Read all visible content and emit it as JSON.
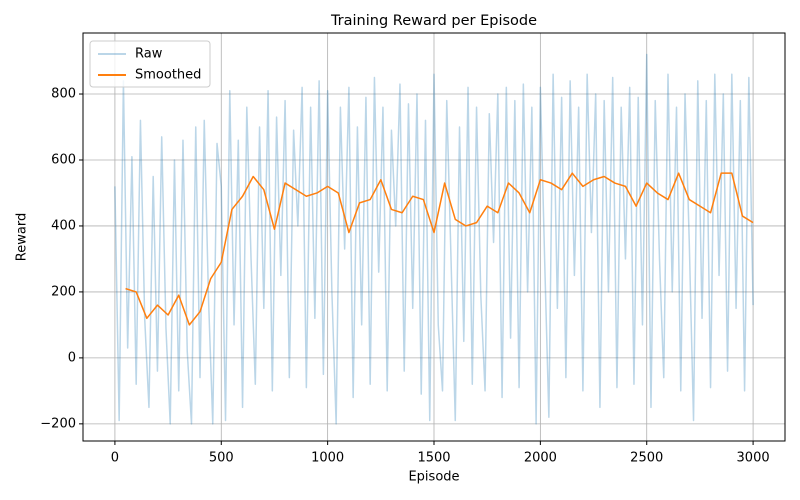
{
  "chart_data": {
    "type": "line",
    "title": "Training Reward per Episode",
    "x_label": "Episode",
    "y_label": "Reward",
    "xlim": [
      -150,
      3150
    ],
    "ylim": [
      -252,
      985
    ],
    "xticks": [
      0,
      500,
      1000,
      1500,
      2000,
      2500,
      3000
    ],
    "yticks": [
      {
        "value": -200,
        "label": "−200"
      },
      0,
      200,
      400,
      600,
      800
    ],
    "grid": true,
    "legend": "upper left",
    "series": [
      {
        "name": "Raw",
        "color": "#1f77b4",
        "opacity": 0.3,
        "x": [
          0,
          20,
          40,
          60,
          80,
          100,
          120,
          140,
          160,
          180,
          200,
          220,
          240,
          260,
          280,
          300,
          320,
          340,
          360,
          380,
          400,
          420,
          440,
          460,
          480,
          500,
          520,
          540,
          560,
          580,
          600,
          620,
          640,
          660,
          680,
          700,
          720,
          740,
          760,
          780,
          800,
          820,
          840,
          860,
          880,
          900,
          920,
          940,
          960,
          980,
          1000,
          1020,
          1040,
          1060,
          1080,
          1100,
          1120,
          1140,
          1160,
          1180,
          1200,
          1220,
          1240,
          1260,
          1280,
          1300,
          1320,
          1340,
          1360,
          1380,
          1400,
          1420,
          1440,
          1460,
          1480,
          1500,
          1520,
          1540,
          1560,
          1580,
          1600,
          1620,
          1640,
          1660,
          1680,
          1700,
          1720,
          1740,
          1760,
          1780,
          1800,
          1820,
          1840,
          1860,
          1880,
          1900,
          1920,
          1940,
          1960,
          1980,
          2000,
          2020,
          2040,
          2060,
          2080,
          2100,
          2120,
          2140,
          2160,
          2180,
          2200,
          2220,
          2240,
          2260,
          2280,
          2300,
          2320,
          2340,
          2360,
          2380,
          2400,
          2420,
          2440,
          2460,
          2480,
          2500,
          2520,
          2540,
          2560,
          2580,
          2600,
          2620,
          2640,
          2660,
          2680,
          2700,
          2720,
          2740,
          2760,
          2780,
          2800,
          2820,
          2840,
          2860,
          2880,
          2900,
          2920,
          2940,
          2960,
          2980,
          3000
        ],
        "values": [
          520,
          -190,
          840,
          30,
          610,
          -80,
          720,
          120,
          -150,
          550,
          -40,
          670,
          90,
          -200,
          600,
          -100,
          660,
          20,
          -200,
          700,
          -60,
          720,
          180,
          -200,
          650,
          520,
          -190,
          810,
          100,
          660,
          -150,
          760,
          300,
          -80,
          700,
          150,
          810,
          -100,
          730,
          250,
          780,
          -60,
          690,
          400,
          820,
          -90,
          760,
          120,
          840,
          -50,
          810,
          200,
          -200,
          760,
          330,
          820,
          -120,
          700,
          100,
          790,
          -80,
          850,
          260,
          760,
          -100,
          690,
          400,
          830,
          -40,
          770,
          150,
          800,
          -110,
          720,
          -190,
          860,
          100,
          -100,
          780,
          300,
          -190,
          700,
          50,
          820,
          -80,
          760,
          190,
          -100,
          740,
          350,
          800,
          -120,
          820,
          60,
          780,
          -90,
          830,
          200,
          760,
          -200,
          820,
          300,
          -180,
          860,
          150,
          790,
          -60,
          840,
          250,
          760,
          -100,
          860,
          380,
          800,
          -150,
          780,
          200,
          850,
          -90,
          760,
          300,
          820,
          -80,
          790,
          100,
          920,
          -150,
          780,
          300,
          -60,
          860,
          200,
          760,
          -100,
          800,
          350,
          -190,
          840,
          120,
          780,
          -90,
          860,
          250,
          800,
          -40,
          860,
          150,
          780,
          -100,
          850,
          160
        ]
      },
      {
        "name": "Smoothed",
        "color": "#ff7f0e",
        "opacity": 1,
        "x": [
          50,
          100,
          150,
          200,
          250,
          300,
          350,
          400,
          450,
          500,
          550,
          600,
          650,
          700,
          750,
          800,
          850,
          900,
          950,
          1000,
          1050,
          1100,
          1150,
          1200,
          1250,
          1300,
          1350,
          1400,
          1450,
          1500,
          1550,
          1600,
          1650,
          1700,
          1750,
          1800,
          1850,
          1900,
          1950,
          2000,
          2050,
          2100,
          2150,
          2200,
          2250,
          2300,
          2350,
          2400,
          2450,
          2500,
          2550,
          2600,
          2650,
          2700,
          2750,
          2800,
          2850,
          2900,
          2950,
          3000
        ],
        "values": [
          210,
          200,
          120,
          160,
          130,
          190,
          100,
          140,
          240,
          290,
          450,
          490,
          550,
          510,
          390,
          530,
          510,
          490,
          500,
          520,
          500,
          380,
          470,
          480,
          540,
          450,
          440,
          490,
          480,
          380,
          530,
          420,
          400,
          410,
          460,
          440,
          530,
          500,
          440,
          540,
          530,
          510,
          560,
          520,
          540,
          550,
          530,
          520,
          460,
          530,
          500,
          480,
          560,
          480,
          460,
          440,
          560,
          560,
          430,
          410
        ]
      }
    ]
  }
}
